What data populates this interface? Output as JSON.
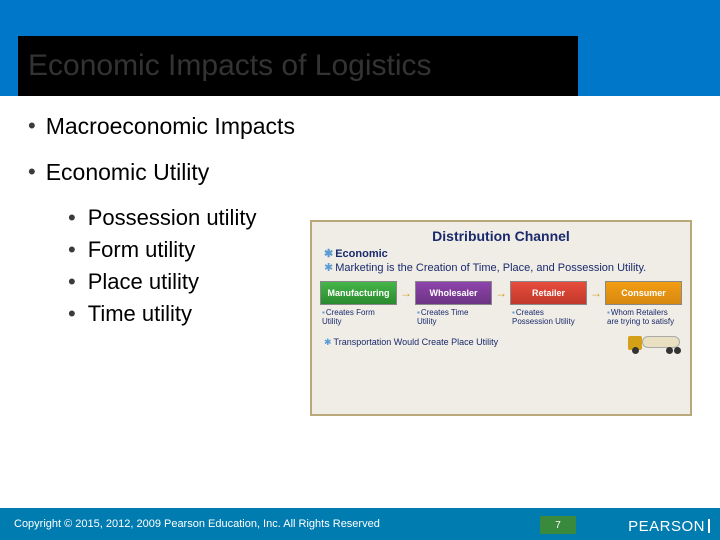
{
  "title": "Economic Impacts of Logistics",
  "bullets": {
    "l1a": "Macroeconomic Impacts",
    "l1b": "Economic Utility",
    "l2a": "Possession utility",
    "l2b": "Form utility",
    "l2c": "Place utility",
    "l2d": "Time utility"
  },
  "diagram": {
    "title": "Distribution Channel",
    "econ": "Economic",
    "marketing": "Marketing is the Creation of Time, Place, and Possession Utility.",
    "boxes": {
      "m": "Manufacturing",
      "w": "Wholesaler",
      "r": "Retailer",
      "c": "Consumer"
    },
    "caps": {
      "m": "Creates Form Utility",
      "w": "Creates Time Utility",
      "r": "Creates Possession Utility",
      "c": "Whom Retailers are trying to satisfy"
    },
    "transport": "Transportation Would Create Place Utility"
  },
  "footer": {
    "copyright": "Copyright © 2015, 2012, 2009 Pearson Education, Inc. All Rights Reserved",
    "page": "7",
    "brand": "PEARSON"
  },
  "colors": {
    "header": "#0077c8",
    "footer": "#007cb0",
    "page_badge": "#3a8a3e",
    "diagram_bg": "#f0ede6",
    "diagram_border": "#b8a87a"
  }
}
